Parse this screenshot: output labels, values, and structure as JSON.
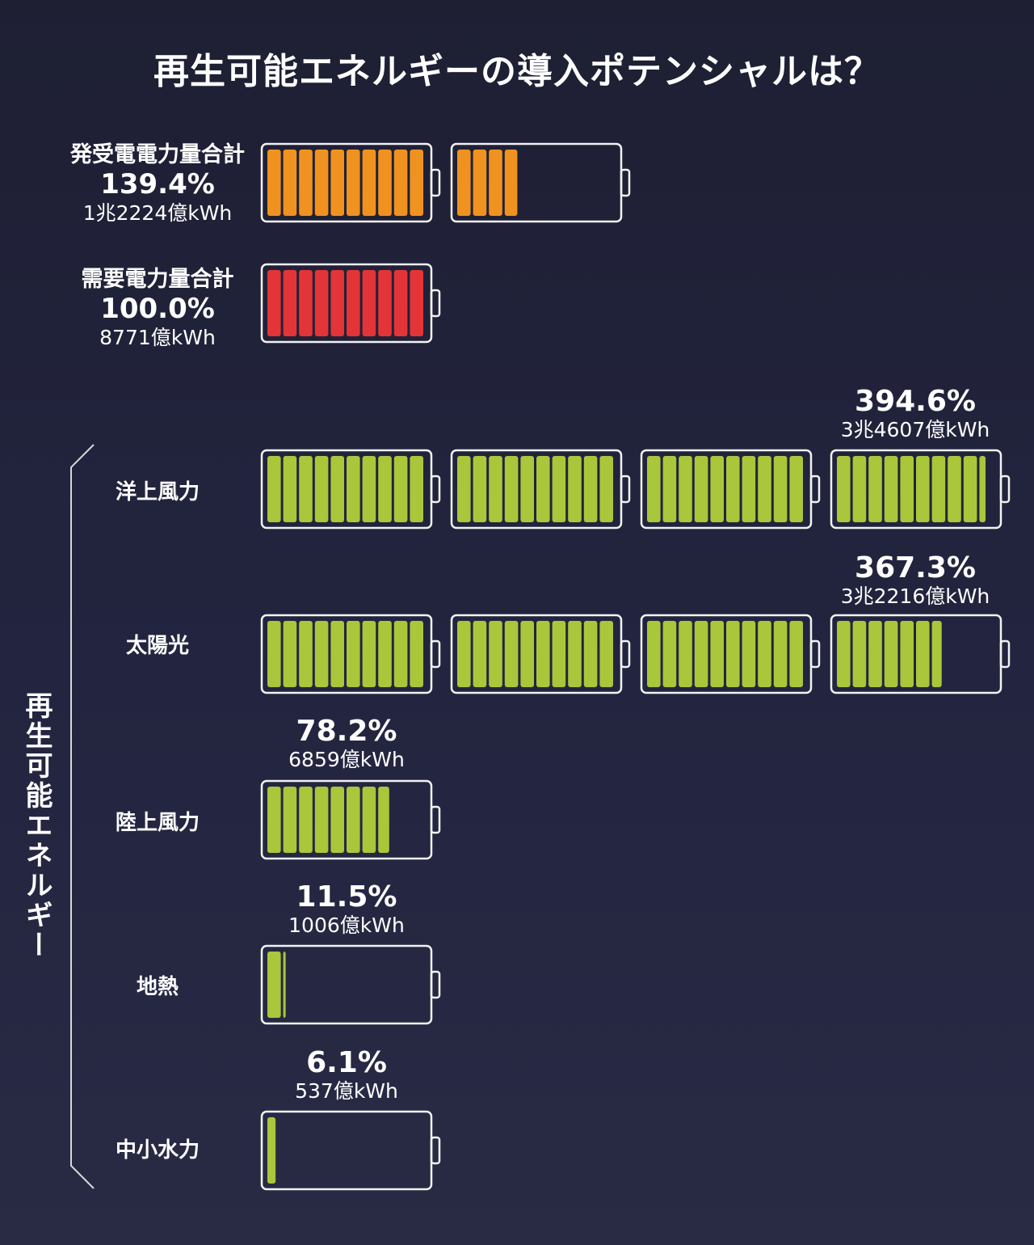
{
  "title": "再生可能エネルギーの導入ポテンシャルは？",
  "group_label": "再生可能エネルギー",
  "colors": {
    "supply": "#f0921f",
    "demand": "#e33437",
    "renewable": "#aac63a",
    "outline": "#f2f2f2"
  },
  "chart_data": {
    "type": "bar",
    "unit_per_battery_percent": 100,
    "cells_per_battery": 10,
    "totals": [
      {
        "label": "発受電電力量合計",
        "percent": 139.4,
        "percent_text": "139.4%",
        "amount_text": "1兆2224億kWh",
        "color": "#f0921f"
      },
      {
        "label": "需要電力量合計",
        "percent": 100.0,
        "percent_text": "100.0%",
        "amount_text": "8771億kWh",
        "color": "#e33437"
      }
    ],
    "categories": [
      {
        "label": "洋上風力",
        "percent": 394.6,
        "percent_text": "394.6%",
        "amount_text": "3兆4607億kWh"
      },
      {
        "label": "太陽光",
        "percent": 367.3,
        "percent_text": "367.3%",
        "amount_text": "3兆2216億kWh"
      },
      {
        "label": "陸上風力",
        "percent": 78.2,
        "percent_text": "78.2%",
        "amount_text": "6859億kWh"
      },
      {
        "label": "地熱",
        "percent": 11.5,
        "percent_text": "11.5%",
        "amount_text": "1006億kWh"
      },
      {
        "label": "中小水力",
        "percent": 6.1,
        "percent_text": "6.1%",
        "amount_text": "537億kWh"
      }
    ]
  }
}
